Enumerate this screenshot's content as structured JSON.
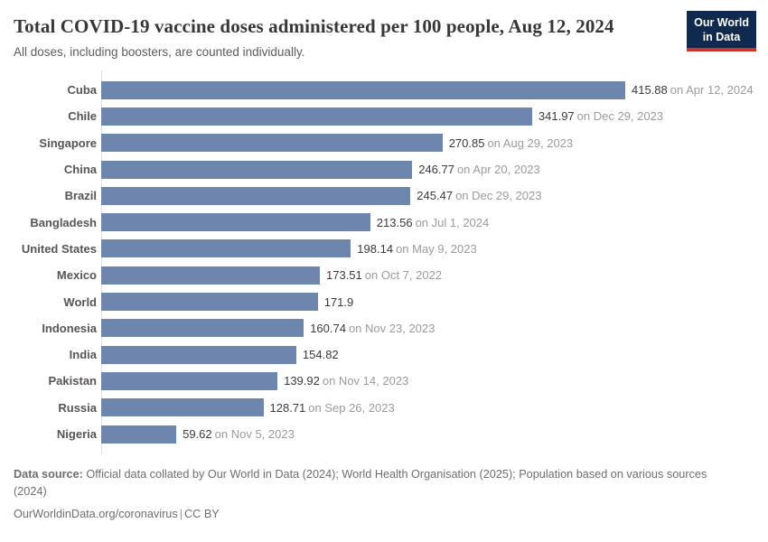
{
  "header": {
    "title": "Total COVID-19 vaccine doses administered per 100 people, Aug 12, 2024",
    "subtitle": "All doses, including boosters, are counted individually.",
    "logo": {
      "line1": "Our World",
      "line2": "in Data"
    }
  },
  "chart_data": {
    "type": "bar",
    "orientation": "horizontal",
    "title": "Total COVID-19 vaccine doses administered per 100 people, Aug 12, 2024",
    "xlabel": "",
    "ylabel": "",
    "xlim": [
      0,
      415.88
    ],
    "grid": false,
    "legend": false,
    "bar_color": "#6e86ae",
    "rows": [
      {
        "label": "Cuba",
        "value": 415.88,
        "value_label": "415.88",
        "date": "on Apr 12, 2024"
      },
      {
        "label": "Chile",
        "value": 341.97,
        "value_label": "341.97",
        "date": "on Dec 29, 2023"
      },
      {
        "label": "Singapore",
        "value": 270.85,
        "value_label": "270.85",
        "date": "on Aug 29, 2023"
      },
      {
        "label": "China",
        "value": 246.77,
        "value_label": "246.77",
        "date": "on Apr 20, 2023"
      },
      {
        "label": "Brazil",
        "value": 245.47,
        "value_label": "245.47",
        "date": "on Dec 29, 2023"
      },
      {
        "label": "Bangladesh",
        "value": 213.56,
        "value_label": "213.56",
        "date": "on Jul 1, 2024"
      },
      {
        "label": "United States",
        "value": 198.14,
        "value_label": "198.14",
        "date": "on May 9, 2023"
      },
      {
        "label": "Mexico",
        "value": 173.51,
        "value_label": "173.51",
        "date": "on Oct 7, 2022"
      },
      {
        "label": "World",
        "value": 171.9,
        "value_label": "171.9",
        "date": ""
      },
      {
        "label": "Indonesia",
        "value": 160.74,
        "value_label": "160.74",
        "date": "on Nov 23, 2023"
      },
      {
        "label": "India",
        "value": 154.82,
        "value_label": "154.82",
        "date": ""
      },
      {
        "label": "Pakistan",
        "value": 139.92,
        "value_label": "139.92",
        "date": "on Nov 14, 2023"
      },
      {
        "label": "Russia",
        "value": 128.71,
        "value_label": "128.71",
        "date": "on Sep 26, 2023"
      },
      {
        "label": "Nigeria",
        "value": 59.62,
        "value_label": "59.62",
        "date": "on Nov 5, 2023"
      }
    ]
  },
  "footer": {
    "data_source_label": "Data source:",
    "data_source_text": " Official data collated by Our World in Data (2024); World Health Organisation (2025); Population based on various sources (2024)",
    "link": "OurWorldinData.org/coronavirus",
    "separator": "|",
    "license": "CC BY"
  },
  "colors": {
    "bar": "#6e86ae",
    "axis_line": "#dedede",
    "title_text": "#383636",
    "logo_navy": "#0f2a4e",
    "logo_red": "#c7362f"
  }
}
